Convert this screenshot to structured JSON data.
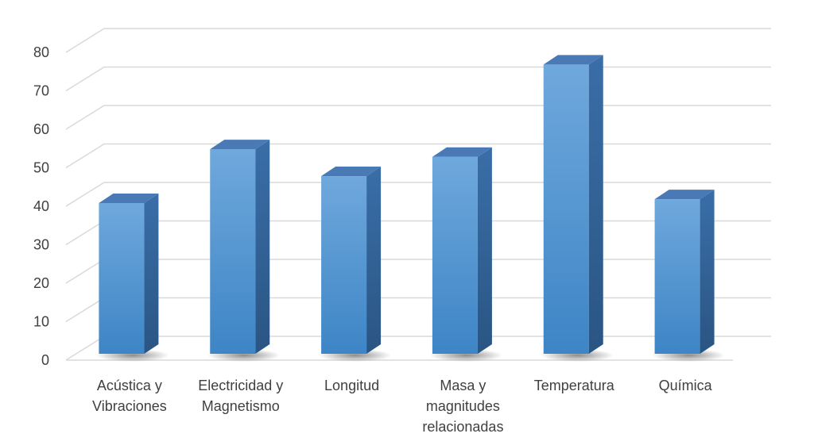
{
  "chart_data": {
    "type": "bar",
    "categories": [
      "Acústica y\nVibraciones",
      "Electricidad y\nMagnetismo",
      "Longitud",
      "Masa y\nmagnitudes\nrelacionadas",
      "Temperatura",
      "Química"
    ],
    "values": [
      40,
      54,
      47,
      52,
      76,
      41
    ],
    "ylim": [
      0,
      80
    ],
    "yticks": [
      0,
      10,
      20,
      30,
      40,
      50,
      60,
      70,
      80
    ],
    "title": "",
    "xlabel": "",
    "ylabel": "",
    "grid": true,
    "style": "3d-column",
    "colors": {
      "bar_front_top": "#6fa8dc",
      "bar_front_bottom": "#3d85c6",
      "bar_side": "#2f5f93",
      "bar_top": "#4a7ab5",
      "grid": "#d9d9d9",
      "axis_text": "#404040"
    }
  }
}
